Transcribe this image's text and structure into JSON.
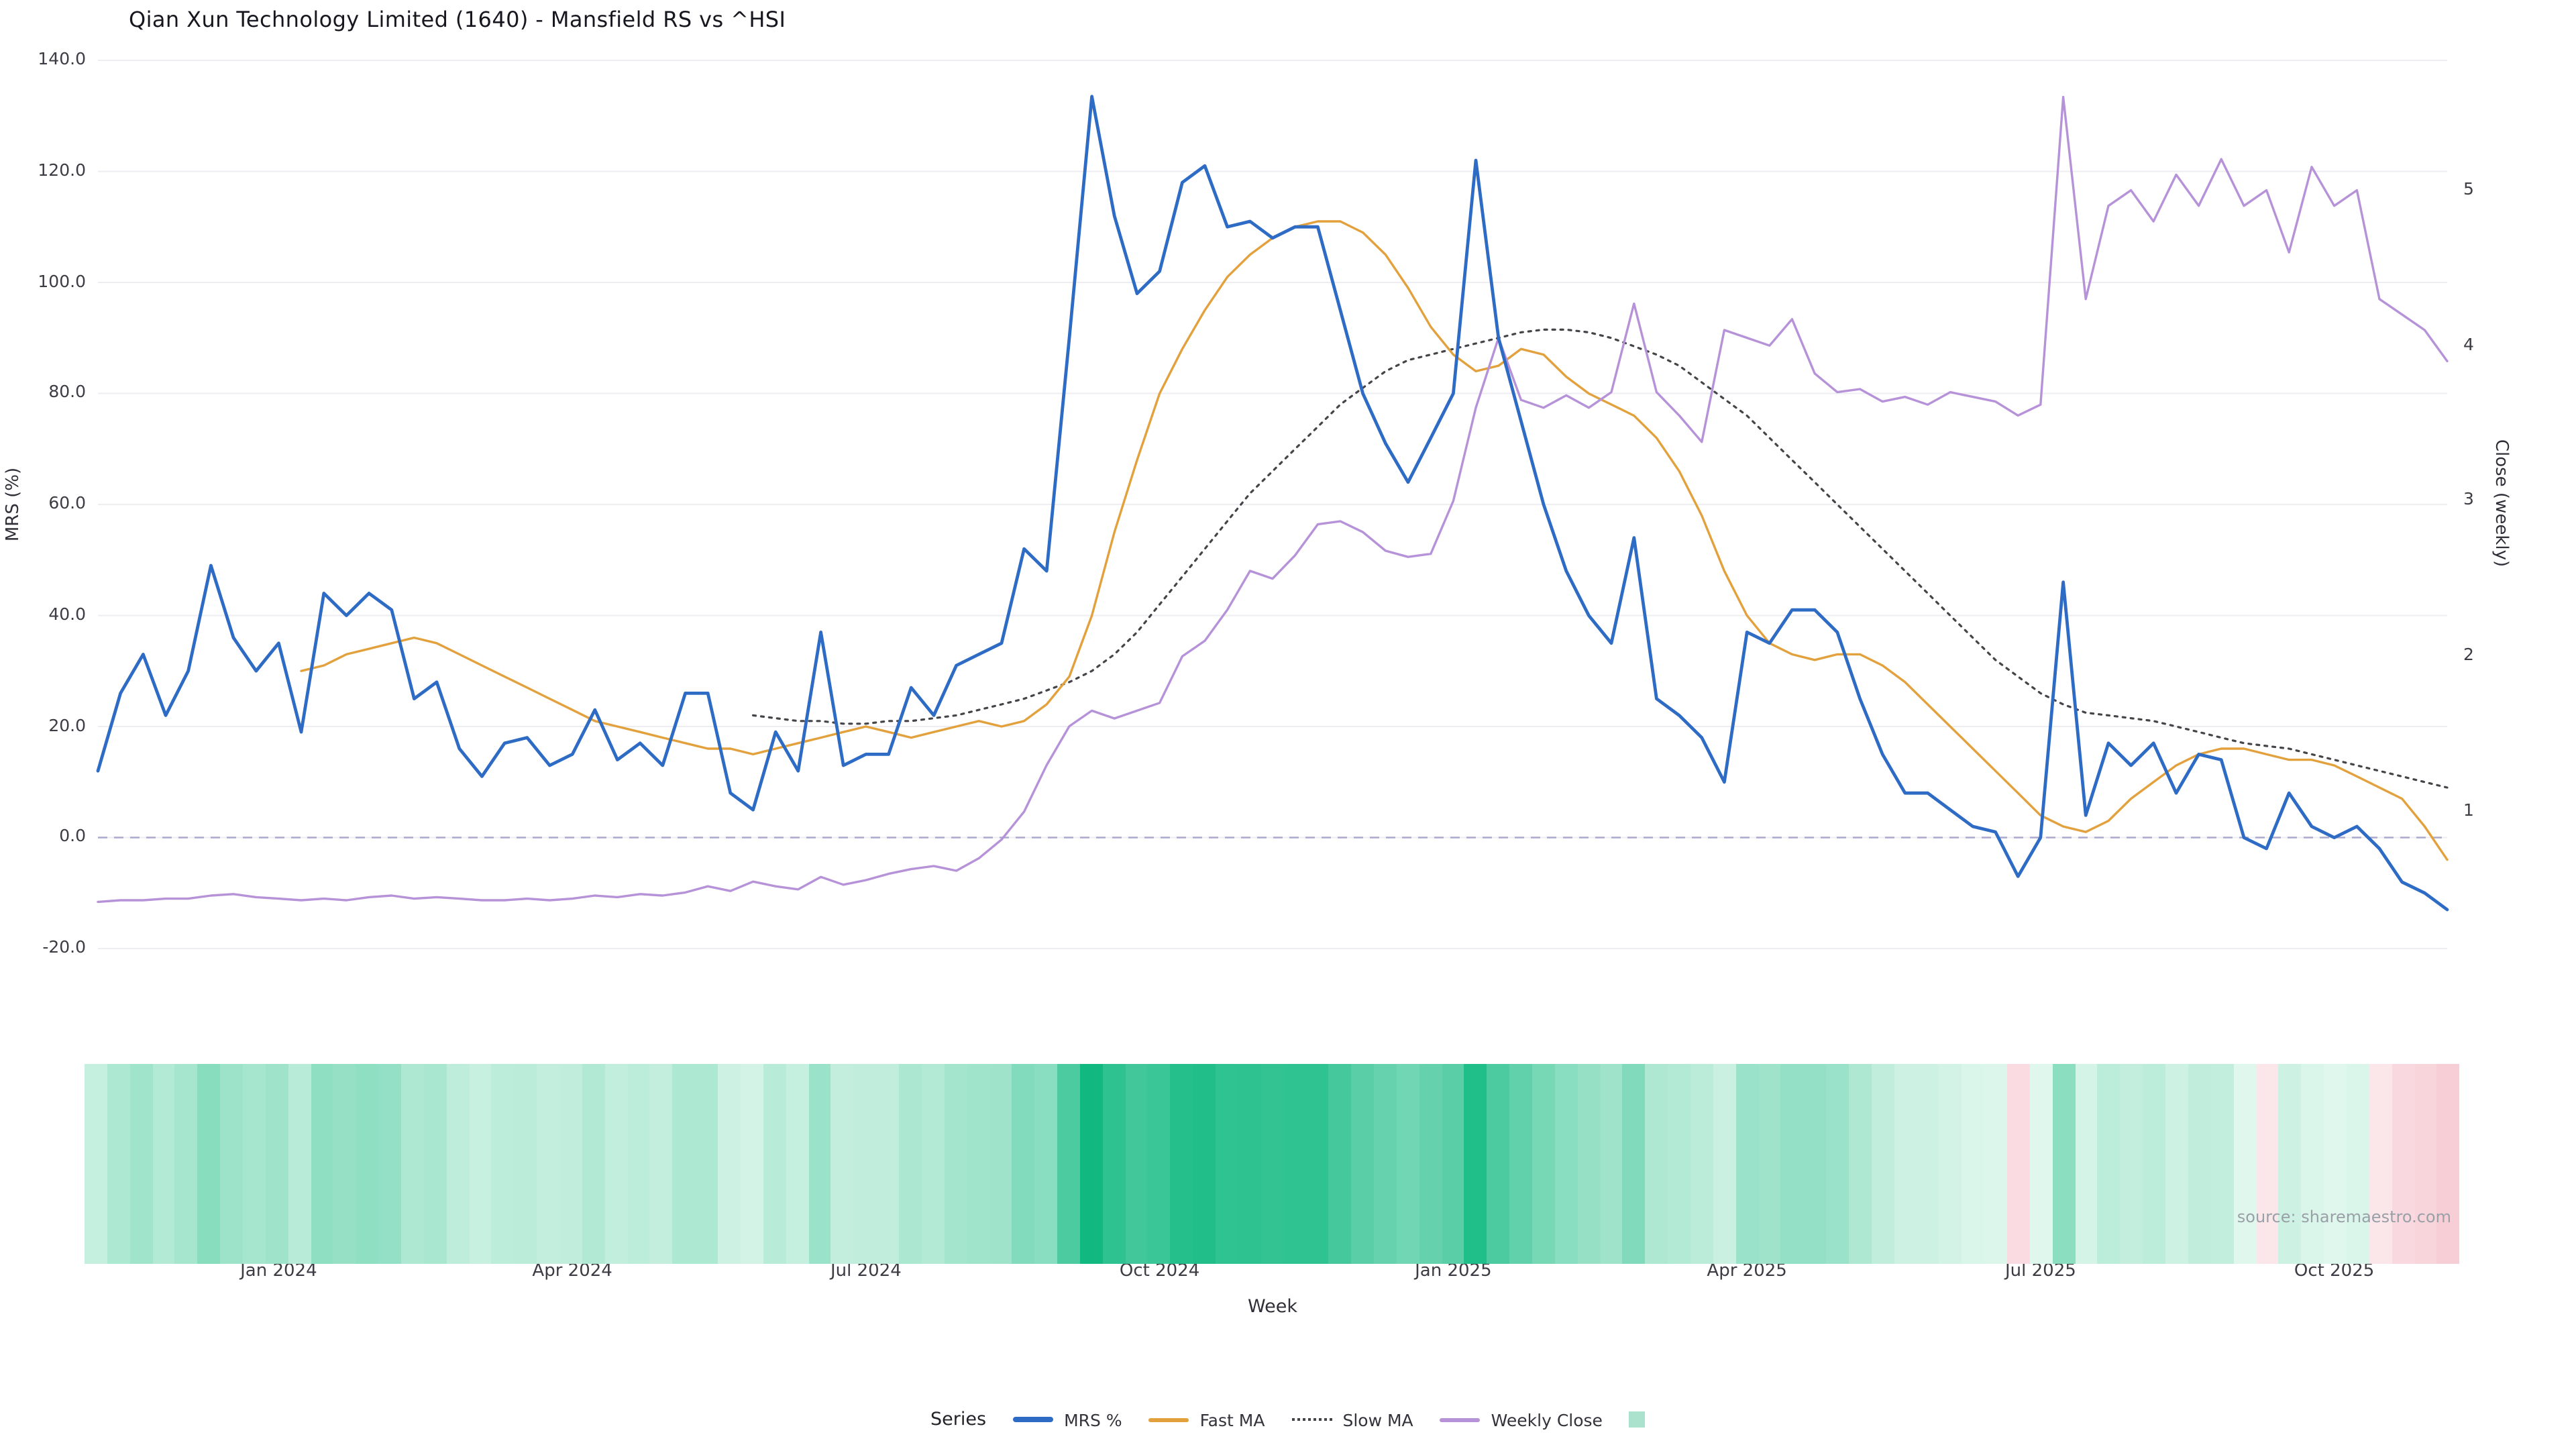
{
  "title": "Qian Xun Technology Limited (1640) - Mansfield RS vs ^HSI",
  "source": "source: sharemaestro.com",
  "axes": {
    "left_label": "MRS (%)",
    "right_label": "Close (weekly)",
    "x_label": "Week"
  },
  "legend": {
    "title": "Series",
    "items": [
      {
        "label": "MRS %",
        "color": "#2e6bc4",
        "swatch": "line"
      },
      {
        "label": "Fast MA",
        "color": "#e2a13c",
        "swatch": "line"
      },
      {
        "label": "Slow MA",
        "color": "#444449",
        "swatch": "dotted"
      },
      {
        "label": "Weekly Close",
        "color": "#b692d8",
        "swatch": "line"
      },
      {
        "label": "",
        "color": "#abe2cd",
        "swatch": "square"
      }
    ]
  },
  "chart_data": {
    "type": "line",
    "title": "Qian Xun Technology Limited (1640) - Mansfield RS vs ^HSI",
    "x_axis": {
      "label": "Week",
      "unit": "weekly",
      "n_weeks": 105,
      "range": [
        "Nov 2023",
        "Nov 2025"
      ],
      "tick_labels": [
        "Jan 2024",
        "Apr 2024",
        "Jul 2024",
        "Oct 2024",
        "Jan 2025",
        "Apr 2025",
        "Jul 2025",
        "Oct 2025"
      ],
      "tick_week_indices": [
        8,
        21,
        34,
        47,
        60,
        73,
        86,
        99
      ]
    },
    "y_left": {
      "label": "MRS (%)",
      "min": -20,
      "max": 140,
      "ticks": [
        "140.0",
        "120.0",
        "100.0",
        "80.0",
        "60.0",
        "40.0",
        "20.0",
        "0.0",
        "-20.0"
      ],
      "zero_reference_line": 0,
      "grid": true
    },
    "y_right": {
      "label": "Close (weekly)",
      "ticks": [
        "5",
        "4",
        "3",
        "2",
        "1"
      ]
    },
    "series": [
      {
        "name": "MRS %",
        "axis": "left",
        "color": "#2e6bc4",
        "style": "solid",
        "values": [
          12,
          26,
          33,
          22,
          30,
          49,
          36,
          30,
          35,
          19,
          44,
          40,
          44,
          41,
          25,
          28,
          16,
          11,
          17,
          18,
          13,
          15,
          23,
          14,
          17,
          13,
          26,
          26,
          8,
          5,
          19,
          12,
          37,
          13,
          15,
          15,
          27,
          22,
          31,
          33,
          35,
          52,
          48,
          90,
          133.5,
          112,
          98,
          102,
          118,
          121,
          110,
          111,
          108,
          110,
          110,
          95,
          80,
          71,
          64,
          72,
          80,
          122,
          90,
          75,
          60,
          48,
          40,
          35,
          54,
          25,
          22,
          18,
          10,
          37,
          35,
          41,
          41,
          37,
          25,
          15,
          8,
          8,
          5,
          2,
          1,
          -7,
          0,
          46,
          4,
          17,
          13,
          17,
          8,
          15,
          14,
          0,
          -2,
          8,
          2,
          0,
          2,
          -2,
          -8,
          -10,
          -13
        ]
      },
      {
        "name": "Fast MA",
        "axis": "left",
        "color": "#e2a13c",
        "style": "solid",
        "values": [
          null,
          null,
          null,
          null,
          null,
          null,
          null,
          null,
          null,
          30,
          31,
          33,
          34,
          35,
          36,
          35,
          33,
          31,
          29,
          27,
          25,
          23,
          21,
          20,
          19,
          18,
          17,
          16,
          16,
          15,
          16,
          17,
          18,
          19,
          20,
          19,
          18,
          19,
          20,
          21,
          20,
          21,
          24,
          29,
          40,
          55,
          68,
          80,
          88,
          95,
          101,
          105,
          108,
          110,
          111,
          111,
          109,
          105,
          99,
          92,
          87,
          84,
          85,
          88,
          87,
          83,
          80,
          78,
          76,
          72,
          66,
          58,
          48,
          40,
          35,
          33,
          32,
          33,
          33,
          31,
          28,
          24,
          20,
          16,
          12,
          8,
          4,
          2,
          1,
          3,
          7,
          10,
          13,
          15,
          16,
          16,
          15,
          14,
          14,
          13,
          11,
          9,
          7,
          2,
          -4
        ]
      },
      {
        "name": "Slow MA",
        "axis": "left",
        "color": "#444449",
        "style": "dotted",
        "values": [
          null,
          null,
          null,
          null,
          null,
          null,
          null,
          null,
          null,
          null,
          null,
          null,
          null,
          null,
          null,
          null,
          null,
          null,
          null,
          null,
          null,
          null,
          null,
          null,
          null,
          null,
          null,
          null,
          null,
          22,
          21.5,
          21,
          21,
          20.5,
          20.5,
          21,
          21,
          21.5,
          22,
          23,
          24,
          25,
          26.5,
          28,
          30,
          33,
          37,
          42,
          47,
          52,
          57,
          62,
          66,
          70,
          74,
          78,
          81,
          84,
          86,
          87,
          88,
          89,
          90,
          91,
          91.5,
          91.5,
          91,
          90,
          88.5,
          87,
          85,
          82,
          79,
          76,
          72,
          68,
          64,
          60,
          56,
          52,
          48,
          44,
          40,
          36,
          32,
          29,
          26,
          24,
          22.5,
          22,
          21.5,
          21,
          20,
          19,
          18,
          17,
          16.5,
          16,
          15,
          14,
          13,
          12,
          11,
          10,
          9
        ]
      },
      {
        "name": "Weekly Close",
        "axis": "right",
        "color": "#b692d8",
        "style": "solid",
        "values": [
          0.42,
          0.43,
          0.43,
          0.44,
          0.44,
          0.46,
          0.47,
          0.45,
          0.44,
          0.43,
          0.44,
          0.43,
          0.45,
          0.46,
          0.44,
          0.45,
          0.44,
          0.43,
          0.43,
          0.44,
          0.43,
          0.44,
          0.46,
          0.45,
          0.47,
          0.46,
          0.48,
          0.52,
          0.49,
          0.55,
          0.52,
          0.5,
          0.58,
          0.53,
          0.56,
          0.6,
          0.63,
          0.65,
          0.62,
          0.7,
          0.82,
          1.0,
          1.3,
          1.55,
          1.65,
          1.6,
          1.65,
          1.7,
          2.0,
          2.1,
          2.3,
          2.55,
          2.5,
          2.65,
          2.85,
          2.87,
          2.8,
          2.68,
          2.64,
          2.66,
          3.0,
          3.6,
          4.05,
          3.65,
          3.6,
          3.68,
          3.6,
          3.7,
          4.27,
          3.7,
          3.55,
          3.38,
          4.1,
          4.05,
          4.0,
          4.17,
          3.82,
          3.7,
          3.72,
          3.64,
          3.67,
          3.62,
          3.7,
          3.67,
          3.64,
          3.55,
          3.62,
          5.6,
          4.3,
          4.9,
          5.0,
          4.8,
          5.1,
          4.9,
          5.2,
          4.9,
          5.0,
          4.6,
          5.15,
          4.9,
          5.0,
          4.3,
          4.2,
          4.1,
          3.9
        ]
      }
    ],
    "heatmap": {
      "derived_from": "MRS %",
      "positive_color": "#10b981",
      "negative_color": "#f6c9d2",
      "legend_swatch_color": "#abe2cd"
    }
  }
}
